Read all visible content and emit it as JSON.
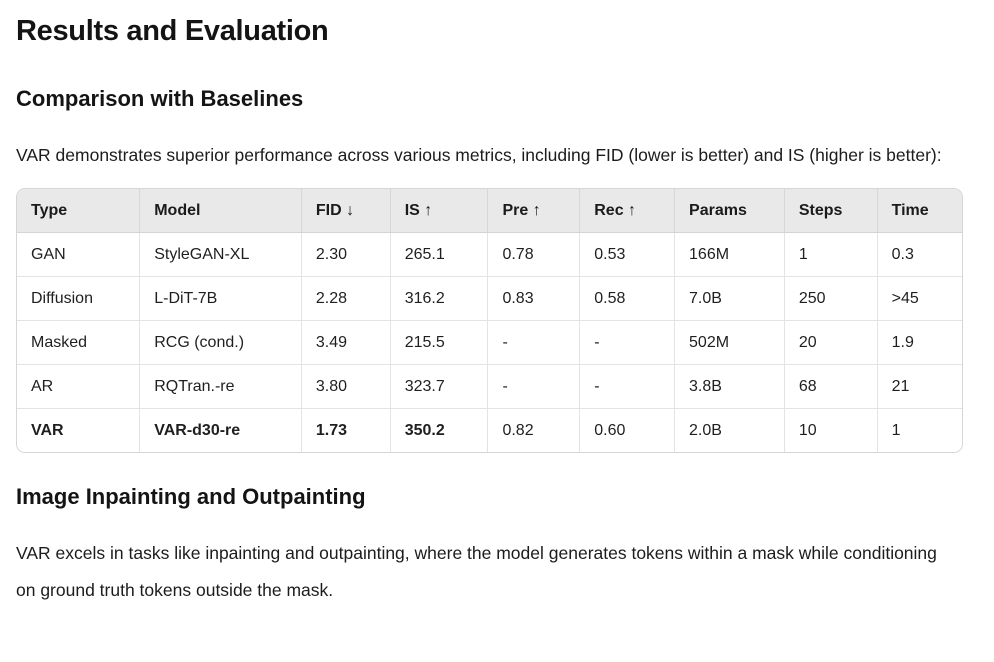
{
  "title": "Results and Evaluation",
  "sections": {
    "comparison": {
      "heading": "Comparison with Baselines",
      "paragraph": "VAR demonstrates superior performance across various metrics, including FID (lower is better) and IS (higher is better):"
    },
    "inpainting": {
      "heading": "Image Inpainting and Outpainting",
      "paragraph": "VAR excels in tasks like inpainting and outpainting, where the model generates tokens within a mask while conditioning on ground truth tokens outside the mask."
    }
  },
  "table": {
    "columns": [
      "Type",
      "Model",
      "FID ↓",
      "IS ↑",
      "Pre ↑",
      "Rec ↑",
      "Params",
      "Steps",
      "Time"
    ],
    "rows": [
      {
        "cells": [
          "GAN",
          "StyleGAN-XL",
          "2.30",
          "265.1",
          "0.78",
          "0.53",
          "166M",
          "1",
          "0.3"
        ]
      },
      {
        "cells": [
          "Diffusion",
          "L-DiT-7B",
          "2.28",
          "316.2",
          "0.83",
          "0.58",
          "7.0B",
          "250",
          ">45"
        ]
      },
      {
        "cells": [
          "Masked",
          "RCG (cond.)",
          "3.49",
          "215.5",
          "-",
          "-",
          "502M",
          "20",
          "1.9"
        ]
      },
      {
        "cells": [
          "AR",
          "RQTran.-re",
          "3.80",
          "323.7",
          "-",
          "-",
          "3.8B",
          "68",
          "21"
        ]
      },
      {
        "cells": [
          "VAR",
          "VAR-d30-re",
          "1.73",
          "350.2",
          "0.82",
          "0.60",
          "2.0B",
          "10",
          "1"
        ]
      }
    ]
  },
  "colors": {
    "page_background": "#ffffff",
    "text": "#171717",
    "table_header_background": "#e9e9e9",
    "table_border": "#d6d6d6",
    "row_divider": "#e3e3e3"
  }
}
